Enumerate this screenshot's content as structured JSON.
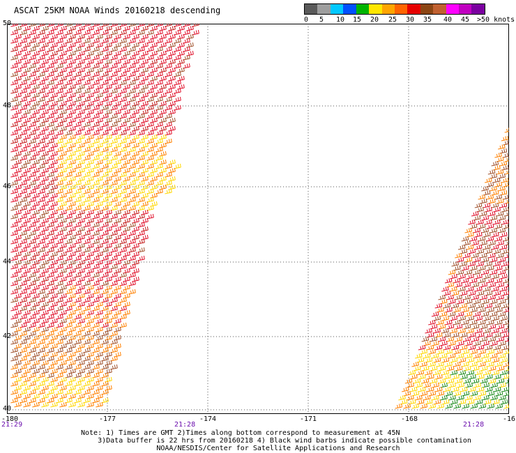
{
  "title": "ASCAT 25KM NOAA Winds 20160218 descending",
  "legend": {
    "swatches": [
      "#5a5a5a",
      "#9e9e9e",
      "#00c8ff",
      "#0050ff",
      "#00b400",
      "#ffe600",
      "#ffa500",
      "#ff6400",
      "#e60000",
      "#8b4513",
      "#c06030",
      "#ff00ff",
      "#c000c0",
      "#7b00a0"
    ],
    "labels": [
      "0",
      "5",
      "10",
      "15",
      "20",
      "25",
      "30",
      "35",
      "40",
      "45",
      ">50 knots"
    ]
  },
  "axes": {
    "lat_labels": [
      "50",
      "48",
      "46",
      "44",
      "42",
      "40"
    ],
    "lon_labels": [
      "-180",
      "-177",
      "-174",
      "-171",
      "-168",
      "-16"
    ],
    "time_labels": [
      "21:29",
      "21:28",
      "21:28"
    ]
  },
  "notes": {
    "line1": "Note: 1) Times are GMT 2)Times along bottom correspond to measurement at 45N",
    "line2": "3)Data buffer is 22 hrs from 20160218 4) Black wind barbs indicate possible contamination",
    "line3": "NOAA/NESDIS/Center for Satellite Applications and Research"
  },
  "colors": {
    "red": "#e0102a",
    "darkred": "#c41e1e",
    "orange": "#ff8000",
    "brown": "#a0522d",
    "yellow": "#ffd700",
    "green": "#1e8c1e"
  }
}
